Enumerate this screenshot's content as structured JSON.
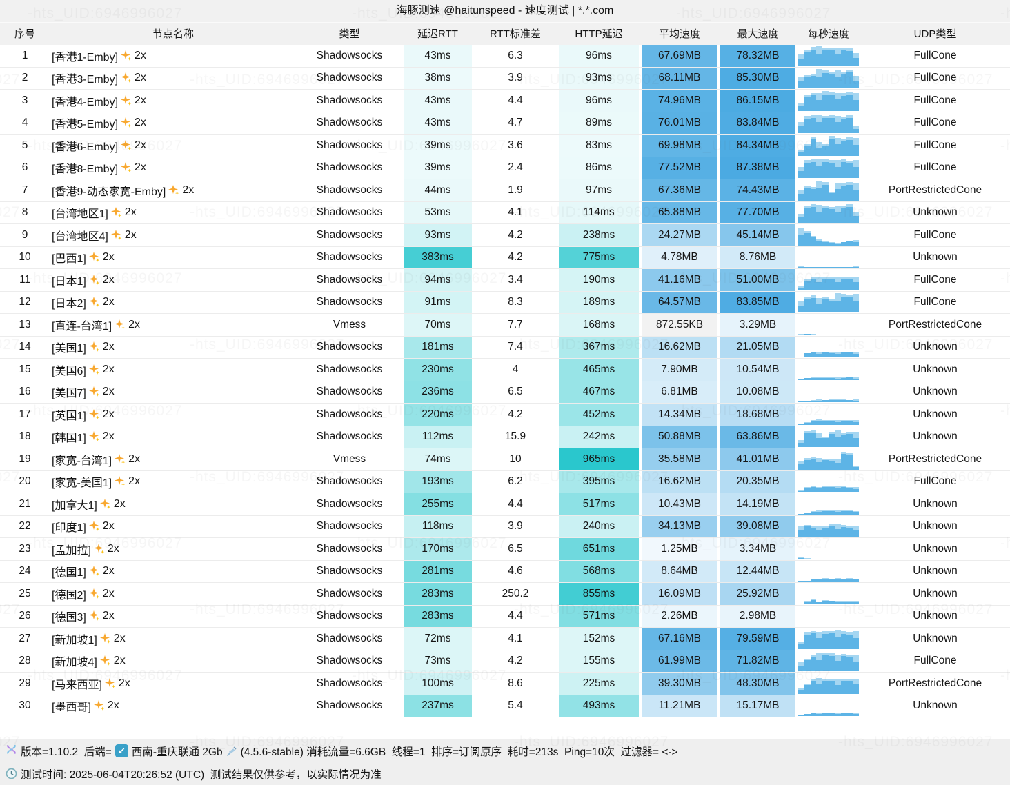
{
  "title": "海豚测速 @haitunspeed - 速度测试 | *.*.com",
  "watermark_text": "-hts_UID:6946996027",
  "columns": [
    "序号",
    "节点名称",
    "类型",
    "延迟RTT",
    "RTT标准差",
    "HTTP延迟",
    "平均速度",
    "最大速度",
    "每秒速度",
    "UDP类型"
  ],
  "colors": {
    "latency_teal": [
      23,
      194,
      201
    ],
    "speed_blue": [
      74,
      170,
      226
    ],
    "bar_light": "#a5d6f1",
    "bar_dark": "#5db4e6",
    "kb_gray": "#f2f2f2",
    "header_bg": "#f1f1f1",
    "footer_bg": "#efefef",
    "sparkle_orange": "#f8a830"
  },
  "rows": [
    {
      "n": "1",
      "name": "[香港1-Emby]",
      "suffix": "2x",
      "type": "Shadowsocks",
      "rtt": "43ms",
      "rtt_v": 43,
      "std": "6.3",
      "http": "96ms",
      "http_v": 96,
      "avg": "67.69MB",
      "avg_v": 67.69,
      "max": "78.32MB",
      "max_v": 78.32,
      "udp": "FullCone",
      "bars": [
        0.6,
        0.8,
        0.92,
        0.95,
        0.9,
        0.88,
        0.9,
        0.88,
        0.85,
        0.62
      ]
    },
    {
      "n": "2",
      "name": "[香港3-Emby]",
      "suffix": "2x",
      "type": "Shadowsocks",
      "rtt": "38ms",
      "rtt_v": 38,
      "std": "3.9",
      "http": "93ms",
      "http_v": 93,
      "avg": "68.11MB",
      "avg_v": 68.11,
      "max": "85.30MB",
      "max_v": 85.3,
      "udp": "FullCone",
      "bars": [
        0.55,
        0.65,
        0.7,
        0.95,
        0.88,
        0.8,
        0.92,
        0.78,
        0.9,
        0.6
      ]
    },
    {
      "n": "3",
      "name": "[香港4-Emby]",
      "suffix": "2x",
      "type": "Shadowsocks",
      "rtt": "43ms",
      "rtt_v": 43,
      "std": "4.4",
      "http": "96ms",
      "http_v": 96,
      "avg": "74.96MB",
      "avg_v": 74.96,
      "max": "86.15MB",
      "max_v": 86.15,
      "udp": "FullCone",
      "bars": [
        0.35,
        0.8,
        0.88,
        0.85,
        0.95,
        0.9,
        0.88,
        0.85,
        0.9,
        0.85
      ]
    },
    {
      "n": "4",
      "name": "[香港5-Emby]",
      "suffix": "2x",
      "type": "Shadowsocks",
      "rtt": "43ms",
      "rtt_v": 43,
      "std": "4.7",
      "http": "89ms",
      "http_v": 89,
      "avg": "76.01MB",
      "avg_v": 76.01,
      "max": "83.84MB",
      "max_v": 83.84,
      "udp": "FullCone",
      "bars": [
        0.55,
        0.85,
        0.88,
        0.87,
        0.86,
        0.88,
        0.85,
        0.83,
        0.87,
        0.35
      ]
    },
    {
      "n": "5",
      "name": "[香港6-Emby]",
      "suffix": "2x",
      "type": "Shadowsocks",
      "rtt": "39ms",
      "rtt_v": 39,
      "std": "3.6",
      "http": "83ms",
      "http_v": 83,
      "avg": "69.98MB",
      "avg_v": 69.98,
      "max": "84.34MB",
      "max_v": 84.34,
      "udp": "FullCone",
      "bars": [
        0.25,
        0.55,
        0.92,
        0.65,
        0.55,
        0.95,
        0.88,
        0.82,
        0.9,
        0.86
      ]
    },
    {
      "n": "6",
      "name": "[香港8-Emby]",
      "suffix": "2x",
      "type": "Shadowsocks",
      "rtt": "39ms",
      "rtt_v": 39,
      "std": "2.4",
      "http": "86ms",
      "http_v": 86,
      "avg": "77.52MB",
      "avg_v": 77.52,
      "max": "87.38MB",
      "max_v": 87.38,
      "udp": "FullCone",
      "bars": [
        0.55,
        0.88,
        0.92,
        0.95,
        0.9,
        0.87,
        0.88,
        0.9,
        0.85,
        0.88
      ]
    },
    {
      "n": "7",
      "name": "[香港9-动态家宽-Emby]",
      "suffix": "2x",
      "type": "Shadowsocks",
      "rtt": "44ms",
      "rtt_v": 44,
      "std": "1.9",
      "http": "97ms",
      "http_v": 97,
      "avg": "67.36MB",
      "avg_v": 67.36,
      "max": "74.43MB",
      "max_v": 74.43,
      "udp": "PortRestrictedCone",
      "bars": [
        0.5,
        0.7,
        0.65,
        0.95,
        0.9,
        0.4,
        0.88,
        0.85,
        0.9,
        0.86
      ]
    },
    {
      "n": "8",
      "name": "[台湾地区1]",
      "suffix": "2x",
      "type": "Shadowsocks",
      "rtt": "53ms",
      "rtt_v": 53,
      "std": "4.1",
      "http": "114ms",
      "http_v": 114,
      "avg": "65.88MB",
      "avg_v": 65.88,
      "max": "77.70MB",
      "max_v": 77.7,
      "udp": "Unknown",
      "bars": [
        0.45,
        0.82,
        0.9,
        0.87,
        0.82,
        0.78,
        0.82,
        0.86,
        0.9,
        0.55
      ]
    },
    {
      "n": "9",
      "name": "[台湾地区4]",
      "suffix": "2x",
      "type": "Shadowsocks",
      "rtt": "93ms",
      "rtt_v": 93,
      "std": "4.2",
      "http": "238ms",
      "http_v": 238,
      "avg": "24.27MB",
      "avg_v": 24.27,
      "max": "45.14MB",
      "max_v": 45.14,
      "udp": "FullCone",
      "bars": [
        0.85,
        0.68,
        0.45,
        0.3,
        0.2,
        0.15,
        0.12,
        0.17,
        0.22,
        0.26
      ]
    },
    {
      "n": "10",
      "name": "[巴西1]",
      "suffix": "2x",
      "type": "Shadowsocks",
      "rtt": "383ms",
      "rtt_v": 383,
      "std": "4.2",
      "http": "775ms",
      "http_v": 775,
      "avg": "4.78MB",
      "avg_v": 4.78,
      "max": "8.76MB",
      "max_v": 8.76,
      "udp": "Unknown",
      "bars": [
        0.06,
        0.05,
        0.04,
        0.04,
        0.05,
        0.05,
        0.04,
        0.04,
        0.05,
        0.06
      ]
    },
    {
      "n": "11",
      "name": "[日本1]",
      "suffix": "2x",
      "type": "Shadowsocks",
      "rtt": "94ms",
      "rtt_v": 94,
      "std": "3.4",
      "http": "190ms",
      "http_v": 190,
      "avg": "41.16MB",
      "avg_v": 41.16,
      "max": "51.00MB",
      "max_v": 51.0,
      "udp": "FullCone",
      "bars": [
        0.18,
        0.52,
        0.62,
        0.65,
        0.67,
        0.66,
        0.65,
        0.66,
        0.67,
        0.65
      ]
    },
    {
      "n": "12",
      "name": "[日本2]",
      "suffix": "2x",
      "type": "Shadowsocks",
      "rtt": "91ms",
      "rtt_v": 91,
      "std": "8.3",
      "http": "189ms",
      "http_v": 189,
      "avg": "64.57MB",
      "avg_v": 64.57,
      "max": "83.85MB",
      "max_v": 83.85,
      "udp": "FullCone",
      "bars": [
        0.55,
        0.78,
        0.85,
        0.72,
        0.76,
        0.68,
        0.95,
        0.9,
        0.86,
        0.92
      ]
    },
    {
      "n": "13",
      "name": "[直连-台湾1]",
      "suffix": "2x",
      "type": "Vmess",
      "rtt": "70ms",
      "rtt_v": 70,
      "std": "7.7",
      "http": "168ms",
      "http_v": 168,
      "avg": "872.55KB",
      "avg_v": 0.85,
      "max": "3.29MB",
      "max_v": 3.29,
      "udp": "PortRestrictedCone",
      "bars": [
        0.05,
        0.06,
        0.04,
        0.03,
        0.02,
        0.02,
        0.02,
        0.02,
        0.02,
        0.03
      ]
    },
    {
      "n": "14",
      "name": "[美国1]",
      "suffix": "2x",
      "type": "Shadowsocks",
      "rtt": "181ms",
      "rtt_v": 181,
      "std": "7.4",
      "http": "367ms",
      "http_v": 367,
      "avg": "16.62MB",
      "avg_v": 16.62,
      "max": "21.05MB",
      "max_v": 21.05,
      "udp": "Unknown",
      "bars": [
        0.04,
        0.22,
        0.26,
        0.27,
        0.26,
        0.25,
        0.28,
        0.27,
        0.26,
        0.25
      ]
    },
    {
      "n": "15",
      "name": "[美国6]",
      "suffix": "2x",
      "type": "Shadowsocks",
      "rtt": "230ms",
      "rtt_v": 230,
      "std": "4",
      "http": "465ms",
      "http_v": 465,
      "avg": "7.90MB",
      "avg_v": 7.9,
      "max": "10.54MB",
      "max_v": 10.54,
      "udp": "Unknown",
      "bars": [
        0.03,
        0.09,
        0.11,
        0.13,
        0.11,
        0.12,
        0.11,
        0.12,
        0.13,
        0.11
      ]
    },
    {
      "n": "16",
      "name": "[美国7]",
      "suffix": "2x",
      "type": "Shadowsocks",
      "rtt": "236ms",
      "rtt_v": 236,
      "std": "6.5",
      "http": "467ms",
      "http_v": 467,
      "avg": "6.81MB",
      "avg_v": 6.81,
      "max": "10.08MB",
      "max_v": 10.08,
      "udp": "Unknown",
      "bars": [
        0.03,
        0.06,
        0.1,
        0.12,
        0.11,
        0.12,
        0.14,
        0.12,
        0.11,
        0.12
      ]
    },
    {
      "n": "17",
      "name": "[英国1]",
      "suffix": "2x",
      "type": "Shadowsocks",
      "rtt": "220ms",
      "rtt_v": 220,
      "std": "4.2",
      "http": "452ms",
      "http_v": 452,
      "avg": "14.34MB",
      "avg_v": 14.34,
      "max": "18.68MB",
      "max_v": 18.68,
      "udp": "Unknown",
      "bars": [
        0.03,
        0.12,
        0.22,
        0.25,
        0.21,
        0.22,
        0.21,
        0.22,
        0.23,
        0.21
      ]
    },
    {
      "n": "18",
      "name": "[韩国1]",
      "suffix": "2x",
      "type": "Shadowsocks",
      "rtt": "112ms",
      "rtt_v": 112,
      "std": "15.9",
      "http": "242ms",
      "http_v": 242,
      "avg": "50.88MB",
      "avg_v": 50.88,
      "max": "63.86MB",
      "max_v": 63.86,
      "udp": "Unknown",
      "bars": [
        0.35,
        0.78,
        0.82,
        0.72,
        0.5,
        0.76,
        0.8,
        0.72,
        0.76,
        0.73
      ]
    },
    {
      "n": "19",
      "name": "[家宽-台湾1]",
      "suffix": "2x",
      "type": "Vmess",
      "rtt": "74ms",
      "rtt_v": 74,
      "std": "10",
      "http": "965ms",
      "http_v": 965,
      "avg": "35.58MB",
      "avg_v": 35.58,
      "max": "41.01MB",
      "max_v": 41.01,
      "udp": "PortRestrictedCone",
      "bars": [
        0.4,
        0.55,
        0.58,
        0.55,
        0.52,
        0.5,
        0.52,
        0.88,
        0.8,
        0.18
      ]
    },
    {
      "n": "20",
      "name": "[家宽-美国1]",
      "suffix": "2x",
      "type": "Shadowsocks",
      "rtt": "193ms",
      "rtt_v": 193,
      "std": "6.2",
      "http": "395ms",
      "http_v": 395,
      "avg": "16.62MB",
      "avg_v": 16.62,
      "max": "20.35MB",
      "max_v": 20.35,
      "udp": "FullCone",
      "bars": [
        0.06,
        0.23,
        0.26,
        0.25,
        0.27,
        0.28,
        0.27,
        0.26,
        0.25,
        0.23
      ]
    },
    {
      "n": "21",
      "name": "[加拿大1]",
      "suffix": "2x",
      "type": "Shadowsocks",
      "rtt": "255ms",
      "rtt_v": 255,
      "std": "4.4",
      "http": "517ms",
      "http_v": 517,
      "avg": "10.43MB",
      "avg_v": 10.43,
      "max": "14.19MB",
      "max_v": 14.19,
      "udp": "Unknown",
      "bars": [
        0.03,
        0.06,
        0.16,
        0.19,
        0.18,
        0.19,
        0.2,
        0.19,
        0.18,
        0.17
      ]
    },
    {
      "n": "22",
      "name": "[印度1]",
      "suffix": "2x",
      "type": "Shadowsocks",
      "rtt": "118ms",
      "rtt_v": 118,
      "std": "3.9",
      "http": "240ms",
      "http_v": 240,
      "avg": "34.13MB",
      "avg_v": 34.13,
      "max": "39.08MB",
      "max_v": 39.08,
      "udp": "Unknown",
      "bars": [
        0.5,
        0.58,
        0.52,
        0.55,
        0.5,
        0.62,
        0.6,
        0.57,
        0.52,
        0.5
      ]
    },
    {
      "n": "23",
      "name": "[孟加拉]",
      "suffix": "2x",
      "type": "Shadowsocks",
      "rtt": "170ms",
      "rtt_v": 170,
      "std": "6.5",
      "http": "651ms",
      "http_v": 651,
      "avg": "1.25MB",
      "avg_v": 1.25,
      "max": "3.34MB",
      "max_v": 3.34,
      "udp": "Unknown",
      "bars": [
        0.07,
        0.04,
        0.02,
        0.02,
        0.02,
        0.02,
        0.02,
        0.02,
        0.02,
        0.02
      ]
    },
    {
      "n": "24",
      "name": "[德国1]",
      "suffix": "2x",
      "type": "Shadowsocks",
      "rtt": "281ms",
      "rtt_v": 281,
      "std": "4.6",
      "http": "568ms",
      "http_v": 568,
      "avg": "8.64MB",
      "avg_v": 8.64,
      "max": "12.44MB",
      "max_v": 12.44,
      "udp": "Unknown",
      "bars": [
        0.03,
        0.04,
        0.11,
        0.15,
        0.16,
        0.15,
        0.16,
        0.15,
        0.16,
        0.15
      ]
    },
    {
      "n": "25",
      "name": "[德国2]",
      "suffix": "2x",
      "type": "Shadowsocks",
      "rtt": "283ms",
      "rtt_v": 283,
      "std": "250.2",
      "http": "855ms",
      "http_v": 855,
      "avg": "16.09MB",
      "avg_v": 16.09,
      "max": "25.92MB",
      "max_v": 25.92,
      "udp": "Unknown",
      "bars": [
        0.03,
        0.16,
        0.21,
        0.12,
        0.19,
        0.17,
        0.16,
        0.15,
        0.16,
        0.15
      ]
    },
    {
      "n": "26",
      "name": "[德国3]",
      "suffix": "2x",
      "type": "Shadowsocks",
      "rtt": "283ms",
      "rtt_v": 283,
      "std": "4.4",
      "http": "571ms",
      "http_v": 571,
      "avg": "2.26MB",
      "avg_v": 2.26,
      "max": "2.98MB",
      "max_v": 2.98,
      "udp": "Unknown",
      "bars": [
        0.05,
        0.04,
        0.05,
        0.04,
        0.05,
        0.04,
        0.05,
        0.04,
        0.05,
        0.04
      ]
    },
    {
      "n": "27",
      "name": "[新加坡1]",
      "suffix": "2x",
      "type": "Shadowsocks",
      "rtt": "72ms",
      "rtt_v": 72,
      "std": "4.1",
      "http": "152ms",
      "http_v": 152,
      "avg": "67.16MB",
      "avg_v": 67.16,
      "max": "79.59MB",
      "max_v": 79.59,
      "udp": "Unknown",
      "bars": [
        0.35,
        0.82,
        0.88,
        0.84,
        0.85,
        0.88,
        0.9,
        0.87,
        0.83,
        0.85
      ]
    },
    {
      "n": "28",
      "name": "[新加坡4]",
      "suffix": "2x",
      "type": "Shadowsocks",
      "rtt": "73ms",
      "rtt_v": 73,
      "std": "4.2",
      "http": "155ms",
      "http_v": 155,
      "avg": "61.99MB",
      "avg_v": 61.99,
      "max": "71.82MB",
      "max_v": 71.82,
      "udp": "FullCone",
      "bars": [
        0.45,
        0.62,
        0.82,
        0.87,
        0.92,
        0.87,
        0.82,
        0.86,
        0.82,
        0.78
      ]
    },
    {
      "n": "29",
      "name": "[马来西亚]",
      "suffix": "2x",
      "type": "Shadowsocks",
      "rtt": "100ms",
      "rtt_v": 100,
      "std": "8.6",
      "http": "225ms",
      "http_v": 225,
      "avg": "39.30MB",
      "avg_v": 39.3,
      "max": "48.30MB",
      "max_v": 48.3,
      "udp": "PortRestrictedCone",
      "bars": [
        0.28,
        0.48,
        0.72,
        0.77,
        0.74,
        0.72,
        0.7,
        0.72,
        0.74,
        0.72
      ]
    },
    {
      "n": "30",
      "name": "[墨西哥]",
      "suffix": "2x",
      "type": "Shadowsocks",
      "rtt": "237ms",
      "rtt_v": 237,
      "std": "5.4",
      "http": "493ms",
      "http_v": 493,
      "avg": "11.21MB",
      "avg_v": 11.21,
      "max": "15.17MB",
      "max_v": 15.17,
      "udp": "Unknown",
      "bars": [
        0.04,
        0.11,
        0.16,
        0.17,
        0.16,
        0.17,
        0.18,
        0.17,
        0.16,
        0.15
      ]
    }
  ],
  "footer": {
    "line1_version": "版本=1.10.2  后端=",
    "line1_backend": "西南-重庆联通 2Gb",
    "line1_rest": "(4.5.6-stable) 消耗流量=6.6GB  线程=1  排序=订阅原序  耗时=213s  Ping=10次  过滤器= <->",
    "line2_label": "测试时间: 2025-06-04T20:26:52 (UTC)  测试结果仅供参考，以实际情况为准"
  }
}
